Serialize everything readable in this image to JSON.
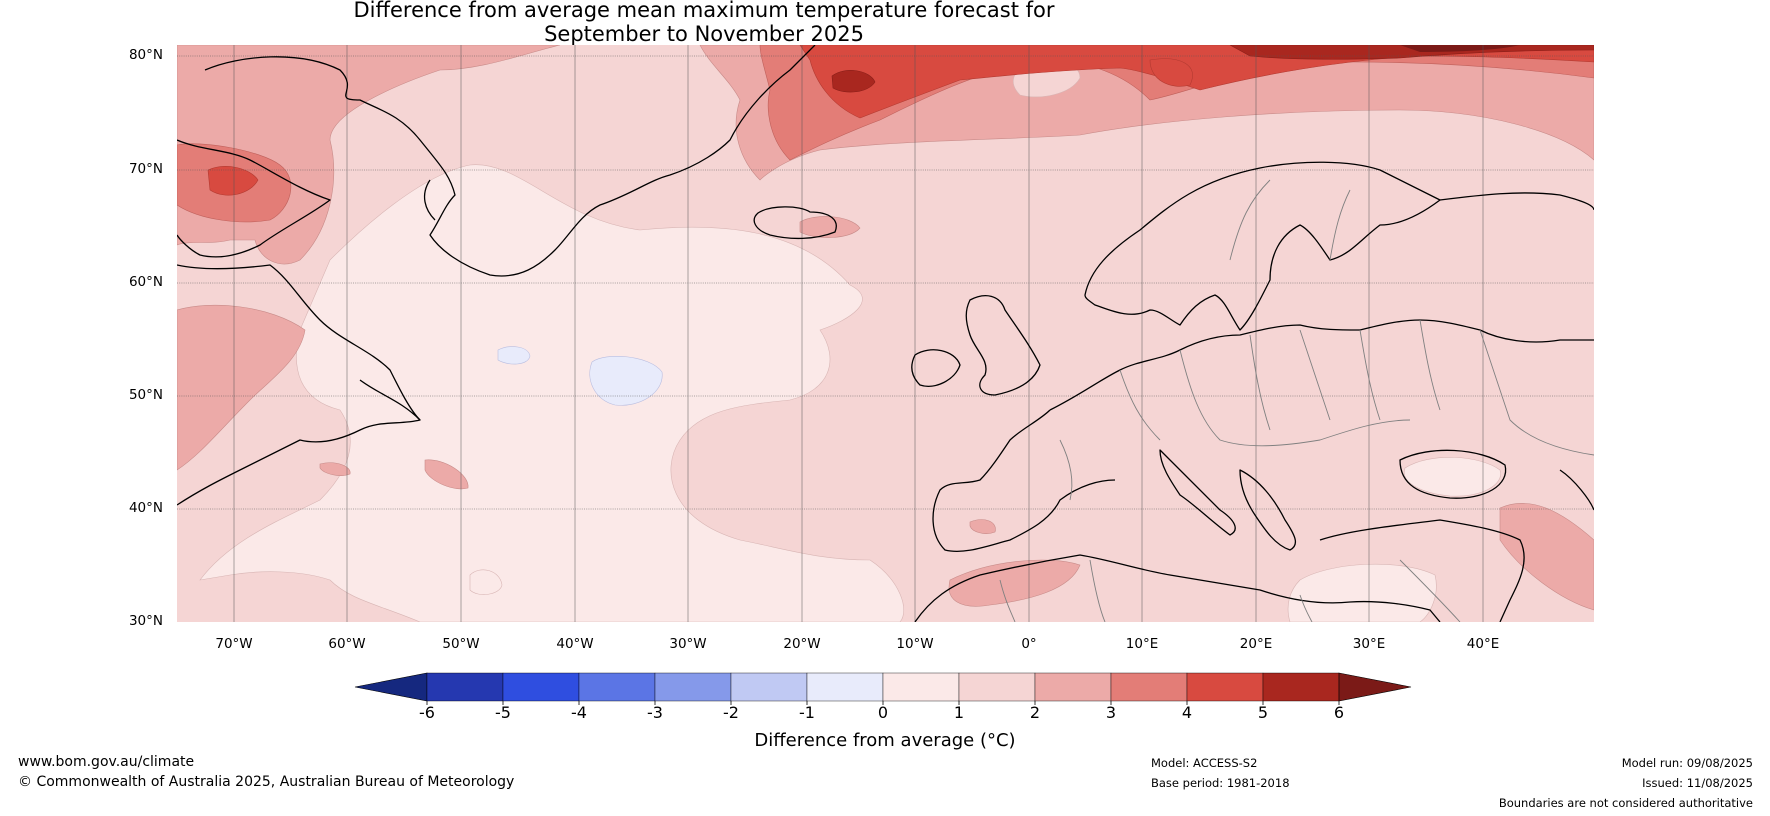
{
  "title": {
    "line1": "Difference from average mean maximum temperature forecast for",
    "line2": "September to November 2025"
  },
  "map": {
    "lat_labels": [
      "80°N",
      "70°N",
      "60°N",
      "50°N",
      "40°N",
      "30°N"
    ],
    "lon_labels": [
      "70°W",
      "60°W",
      "50°W",
      "40°W",
      "30°W",
      "20°W",
      "10°W",
      "0°",
      "10°E",
      "20°E",
      "30°E",
      "40°E"
    ],
    "colors": {
      "land_line": "#000000",
      "border_line": "#808080",
      "grid_line": "#555555"
    }
  },
  "colorbar": {
    "ticks": [
      "-6",
      "-5",
      "-4",
      "-3",
      "-2",
      "-1",
      "0",
      "1",
      "2",
      "3",
      "4",
      "5",
      "6"
    ],
    "colors": [
      "#15287f",
      "#2538b0",
      "#2f4ee0",
      "#5b75e5",
      "#8599ea",
      "#c0c9f3",
      "#e8ebfb",
      "#fbe9e8",
      "#f5d5d4",
      "#ecaaa8",
      "#e37d77",
      "#d84a40",
      "#a9271f",
      "#7b1a17"
    ],
    "label": "Difference from average (°C)"
  },
  "footer": {
    "website": "www.bom.gov.au/climate",
    "copyright": "© Commonwealth of Australia 2025, Australian Bureau of Meteorology",
    "model": "Model: ACCESS-S2",
    "base_period": "Base period: 1981-2018",
    "model_run": "Model run: 09/08/2025",
    "issued": "Issued: 11/08/2025",
    "disclaimer": "Boundaries are not considered authoritative"
  }
}
